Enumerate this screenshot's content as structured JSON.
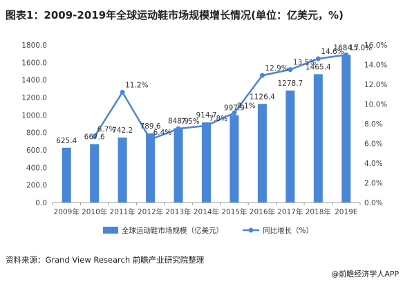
{
  "title": "图表1：2009-2019年全球运动鞋市场规模增长情况(单位：亿美元，%)",
  "source": "资料来源：Grand View Research 前瞻产业研究院整理",
  "brand": "@前瞻经济学人APP",
  "colors": {
    "bar": "#4a86d8",
    "line": "#4a86d8"
  },
  "chart_data": {
    "type": "bar+line",
    "categories": [
      "2009年",
      "2010年",
      "2011年",
      "2012年",
      "2013年",
      "2014年",
      "2015年",
      "2016年",
      "2017年",
      "2018年",
      "2019E"
    ],
    "series": [
      {
        "name": "全球运动鞋市场规模（亿美元）",
        "type": "bar",
        "axis": "left",
        "values": [
          625.4,
          667.6,
          742.2,
          789.6,
          848.9,
          914.7,
          997.9,
          1126.4,
          1278.7,
          1465.4,
          1684.7
        ],
        "labels": [
          "625.4",
          "667.6",
          "742.2",
          "789.6",
          "848.9",
          "914.7",
          "997.9",
          "1126.4",
          "1278.7",
          "1465.4",
          "1684.7"
        ]
      },
      {
        "name": "同比增长（%）",
        "type": "line",
        "axis": "right",
        "values": [
          null,
          6.7,
          11.2,
          6.4,
          7.5,
          7.8,
          9.1,
          12.9,
          13.5,
          14.6,
          15.0
        ],
        "labels": [
          "",
          "6.7%",
          "11.2%",
          "6.4%",
          "7.5%",
          "7.8%",
          "9.1%",
          "12.9%",
          "13.5%",
          "14.6%",
          "15.0%"
        ]
      }
    ],
    "y_left": {
      "min": 0,
      "max": 1800,
      "step": 200,
      "ticks": [
        "0.0",
        "200.0",
        "400.0",
        "600.0",
        "800.0",
        "1000.0",
        "1200.0",
        "1400.0",
        "1600.0",
        "1800.0"
      ]
    },
    "y_right": {
      "min": 0,
      "max": 16,
      "step": 2,
      "ticks": [
        "0.0%",
        "2.0%",
        "4.0%",
        "6.0%",
        "8.0%",
        "10.0%",
        "12.0%",
        "14.0%",
        "16.0%"
      ]
    },
    "grid": false,
    "legend": "bottom"
  }
}
